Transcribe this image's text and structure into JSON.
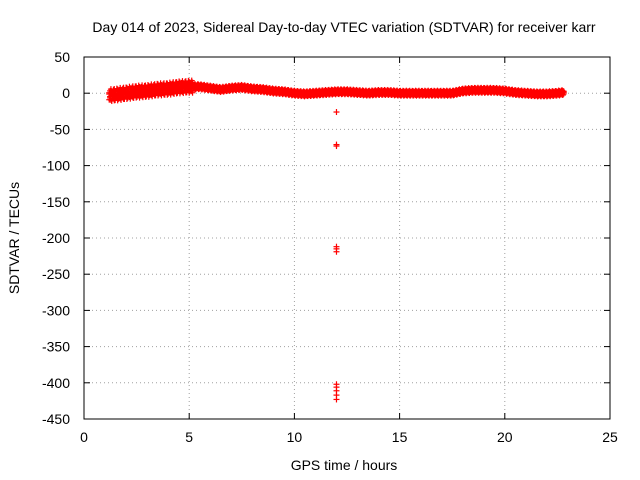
{
  "chart_data": {
    "type": "scatter",
    "title": "Day 014 of 2023, Sidereal Day-to-day VTEC variation (SDTVAR) for receiver karr",
    "xlabel": "GPS time / hours",
    "ylabel": "SDTVAR / TECUs",
    "xlim": [
      0,
      25
    ],
    "ylim": [
      -450,
      50
    ],
    "xticks": [
      0,
      5,
      10,
      15,
      20,
      25
    ],
    "yticks": [
      50,
      0,
      -50,
      -100,
      -150,
      -200,
      -250,
      -300,
      -350,
      -400,
      -450
    ],
    "grid": true,
    "marker": "plus",
    "color": "#ff0000",
    "series": [
      {
        "name": "SDTVAR",
        "trend_x": [
          1.2,
          1.5,
          2.0,
          2.5,
          3.0,
          3.5,
          4.0,
          4.5,
          5.0,
          5.5,
          6.0,
          6.5,
          7.0,
          7.5,
          8.0,
          8.5,
          9.0,
          9.5,
          10.0,
          10.5,
          11.0,
          11.5,
          12.0,
          12.5,
          13.0,
          13.5,
          14.0,
          14.5,
          15.0,
          15.5,
          16.0,
          16.5,
          17.0,
          17.5,
          18.0,
          18.5,
          19.0,
          19.5,
          20.0,
          20.5,
          21.0,
          21.5,
          22.0,
          22.5,
          22.8
        ],
        "trend_y": [
          -3,
          -2,
          0,
          2,
          3,
          5,
          6,
          8,
          9,
          9,
          7,
          5,
          7,
          8,
          6,
          5,
          3,
          2,
          0,
          -1,
          0,
          1,
          2,
          2,
          1,
          0,
          1,
          1,
          0,
          0,
          0,
          0,
          0,
          0,
          3,
          4,
          4,
          4,
          3,
          1,
          0,
          -1,
          -1,
          0,
          1
        ],
        "outliers": [
          {
            "x": 12.0,
            "y": -26
          },
          {
            "x": 12.0,
            "y": -71
          },
          {
            "x": 12.0,
            "y": -73
          },
          {
            "x": 12.0,
            "y": -212
          },
          {
            "x": 12.0,
            "y": -215
          },
          {
            "x": 12.0,
            "y": -219
          },
          {
            "x": 12.0,
            "y": -402
          },
          {
            "x": 12.0,
            "y": -406
          },
          {
            "x": 12.0,
            "y": -411
          },
          {
            "x": 12.0,
            "y": -417
          },
          {
            "x": 12.0,
            "y": -423
          }
        ]
      }
    ]
  }
}
